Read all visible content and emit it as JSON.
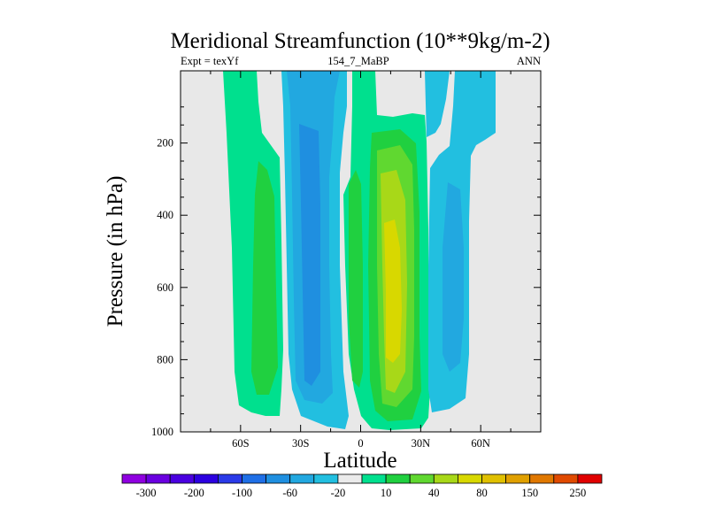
{
  "chart_data": {
    "type": "heatmap",
    "title": "Meridional Streamfunction (10**9kg/m-2)",
    "left_label": "Expt = texYf",
    "center_label": "154_7_MaBP",
    "right_label": "ANN",
    "xlabel": "Latitude",
    "ylabel": "Pressure (in hPa)",
    "xlim": [
      -90,
      90
    ],
    "ylim": [
      1000,
      0
    ],
    "x_ticks": [
      {
        "value": -60,
        "label": "60S"
      },
      {
        "value": -30,
        "label": "30S"
      },
      {
        "value": 0,
        "label": "0"
      },
      {
        "value": 30,
        "label": "30N"
      },
      {
        "value": 60,
        "label": "60N"
      }
    ],
    "y_ticks": [
      {
        "value": 200,
        "label": "200"
      },
      {
        "value": 400,
        "label": "400"
      },
      {
        "value": 600,
        "label": "600"
      },
      {
        "value": 800,
        "label": "800"
      },
      {
        "value": 1000,
        "label": "1000"
      }
    ],
    "colorbar": {
      "colors": [
        "#8f00e0",
        "#6a00e0",
        "#4a00e0",
        "#2c00e0",
        "#2a3ae8",
        "#1f6fe6",
        "#1f8fe0",
        "#22a8e0",
        "#22bfe0",
        "#ebebeb",
        "#00e08e",
        "#20d040",
        "#60d830",
        "#a8d818",
        "#d8d800",
        "#e0c000",
        "#e0a000",
        "#e07800",
        "#e04a00",
        "#e00000"
      ],
      "labels": [
        "-300",
        "-200",
        "-100",
        "-60",
        "-20",
        "10",
        "40",
        "80",
        "150",
        "250"
      ]
    },
    "cells": [
      {
        "lat": -67.5,
        "p": 100,
        "level": 11
      },
      {
        "lat": -67.5,
        "p": 300,
        "level": 11
      },
      {
        "lat": -67.5,
        "p": 500,
        "level": 11
      },
      {
        "lat": -67.5,
        "p": 700,
        "level": 11
      },
      {
        "lat": -67.5,
        "p": 900,
        "level": 11
      },
      {
        "lat": -55,
        "p": 300,
        "level": 12
      },
      {
        "lat": -55,
        "p": 500,
        "level": 12
      },
      {
        "lat": -55,
        "p": 700,
        "level": 12
      },
      {
        "lat": -55,
        "p": 870,
        "level": 12
      },
      {
        "lat": -32,
        "p": 100,
        "level": 7
      },
      {
        "lat": -32,
        "p": 300,
        "level": 6
      },
      {
        "lat": -32,
        "p": 500,
        "level": 6
      },
      {
        "lat": -32,
        "p": 700,
        "level": 6
      },
      {
        "lat": -32,
        "p": 900,
        "level": 7
      },
      {
        "lat": -24,
        "p": 400,
        "level": 5
      },
      {
        "lat": -24,
        "p": 600,
        "level": 5
      },
      {
        "lat": -3,
        "p": 300,
        "level": 11
      },
      {
        "lat": -3,
        "p": 500,
        "level": 12
      },
      {
        "lat": -3,
        "p": 700,
        "level": 11
      },
      {
        "lat": 12,
        "p": 100,
        "level": 11
      },
      {
        "lat": 12,
        "p": 300,
        "level": 13
      },
      {
        "lat": 12,
        "p": 500,
        "level": 14
      },
      {
        "lat": 12,
        "p": 700,
        "level": 14
      },
      {
        "lat": 12,
        "p": 900,
        "level": 13
      },
      {
        "lat": 40,
        "p": 100,
        "level": 8
      },
      {
        "lat": 40,
        "p": 300,
        "level": 8
      },
      {
        "lat": 40,
        "p": 500,
        "level": 7
      },
      {
        "lat": 40,
        "p": 700,
        "level": 7
      },
      {
        "lat": 40,
        "p": 900,
        "level": 8
      },
      {
        "lat": 49,
        "p": 550,
        "level": 7
      }
    ]
  }
}
